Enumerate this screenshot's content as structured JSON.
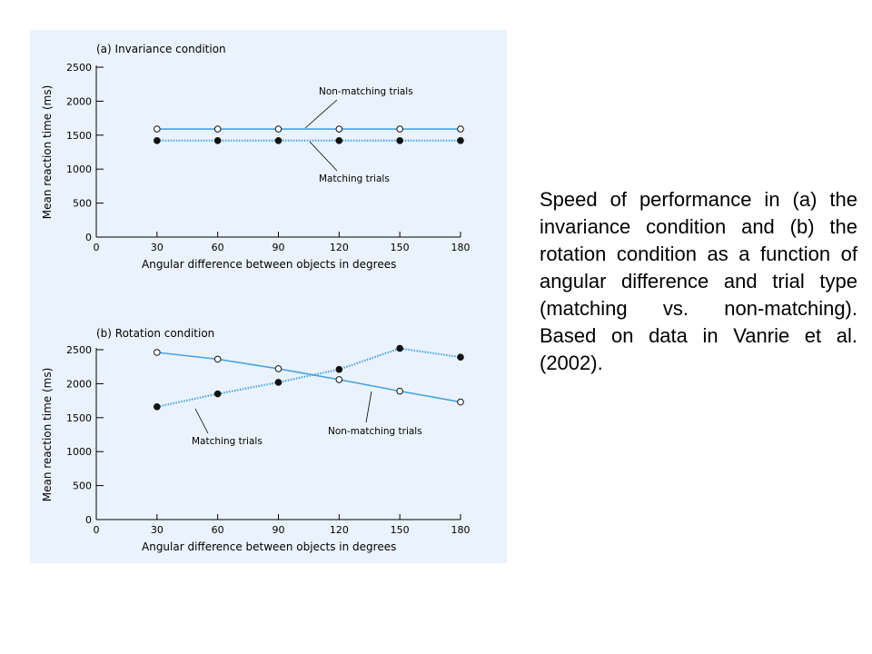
{
  "caption": "Speed of performance in (a) the invariance condition and (b) the rotation condition as a function of angular difference and trial type (matching vs. non-matching). Based on data in Vanrie et al. (2002).",
  "colors": {
    "panel_background": "#eaf3fd",
    "line": "#4aa3df",
    "axis": "#000000"
  },
  "chart_data": [
    {
      "type": "line",
      "title": "(a) Invariance condition",
      "xlabel": "Angular difference between objects in degrees",
      "ylabel": "Mean reaction time (ms)",
      "x_ticks": [
        "0",
        "30",
        "60",
        "90",
        "120",
        "150",
        "180"
      ],
      "y_ticks": [
        "0",
        "500",
        "1000",
        "1500",
        "2000",
        "2500"
      ],
      "xlim": [
        0,
        180
      ],
      "ylim": [
        0,
        2500
      ],
      "grid": false,
      "x": [
        30,
        60,
        90,
        120,
        150,
        180
      ],
      "series": [
        {
          "name": "Non-matching trials",
          "values": [
            1590,
            1590,
            1590,
            1590,
            1590,
            1590
          ],
          "marker": "open-circle",
          "line_style": "solid"
        },
        {
          "name": "Matching trials",
          "values": [
            1420,
            1420,
            1420,
            1420,
            1420,
            1420
          ],
          "marker": "filled-circle",
          "line_style": "dotted"
        }
      ]
    },
    {
      "type": "line",
      "title": "(b) Rotation condition",
      "xlabel": "Angular difference between objects in degrees",
      "ylabel": "Mean reaction time (ms)",
      "x_ticks": [
        "0",
        "30",
        "60",
        "90",
        "120",
        "150",
        "180"
      ],
      "y_ticks": [
        "0",
        "500",
        "1000",
        "1500",
        "2000",
        "2500"
      ],
      "xlim": [
        0,
        180
      ],
      "ylim": [
        0,
        2500
      ],
      "grid": false,
      "x": [
        30,
        60,
        90,
        120,
        150,
        180
      ],
      "series": [
        {
          "name": "Non-matching trials",
          "values": [
            2460,
            2360,
            2220,
            2060,
            1890,
            1730
          ],
          "marker": "open-circle",
          "line_style": "solid"
        },
        {
          "name": "Matching trials",
          "values": [
            1660,
            1850,
            2020,
            2210,
            2520,
            2390
          ],
          "marker": "filled-circle",
          "line_style": "dotted"
        }
      ]
    }
  ]
}
